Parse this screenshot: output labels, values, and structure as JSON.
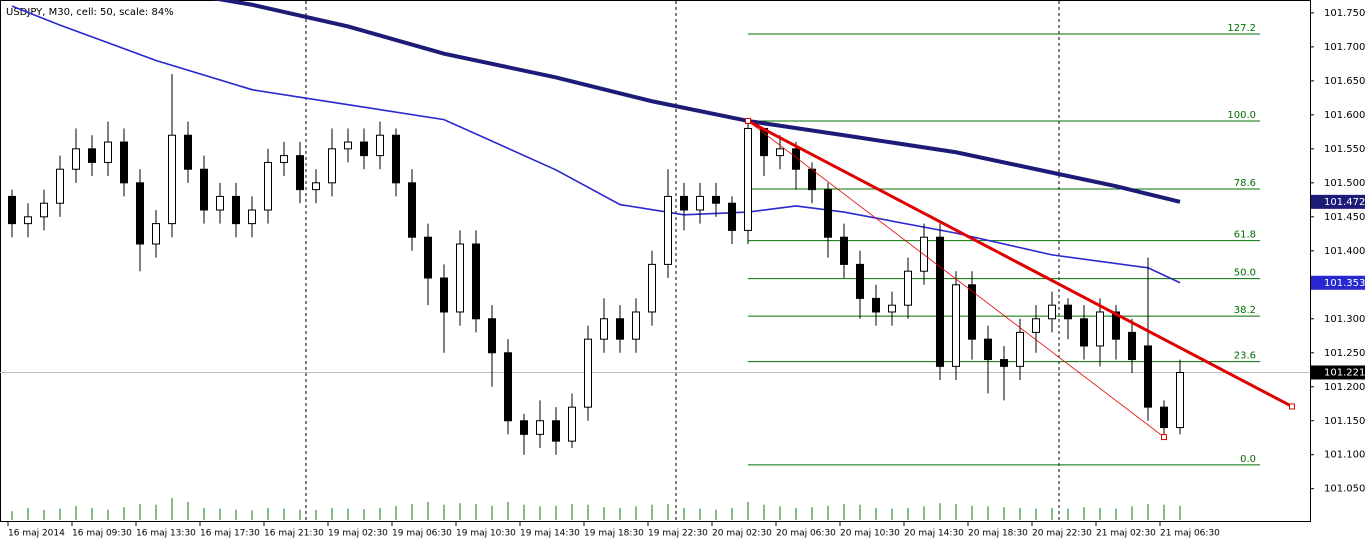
{
  "chart_data": {
    "type": "candlestick",
    "title": "USDJPY, M30, cell: 50, scale: 84%",
    "categories": [
      "16 maj 2014",
      null,
      null,
      null,
      "16 maj 09:30",
      null,
      null,
      null,
      "16 maj 13:30",
      null,
      null,
      null,
      "16 maj 17:30",
      null,
      null,
      null,
      "16 maj 21:30",
      null,
      null,
      null,
      "19 maj 02:30",
      null,
      null,
      null,
      "19 maj 06:30",
      null,
      null,
      null,
      "19 maj 10:30",
      null,
      null,
      null,
      "19 maj 14:30",
      null,
      null,
      null,
      "19 maj 18:30",
      null,
      null,
      null,
      "19 maj 22:30",
      null,
      null,
      null,
      "20 maj 02:30",
      null,
      null,
      null,
      "20 maj 06:30",
      null,
      null,
      null,
      "20 maj 10:30",
      null,
      null,
      null,
      "20 maj 14:30",
      null,
      null,
      null,
      "20 maj 18:30",
      null,
      null,
      null,
      "20 maj 22:30",
      null,
      null,
      null,
      "21 maj 02:30",
      null,
      null,
      null,
      "21 maj 06:30",
      null
    ],
    "open": [
      101.48,
      101.44,
      101.45,
      101.47,
      101.52,
      101.55,
      101.53,
      101.56,
      101.5,
      101.41,
      101.44,
      101.57,
      101.52,
      101.46,
      101.48,
      101.44,
      101.46,
      101.53,
      101.54,
      101.49,
      101.5,
      101.55,
      101.56,
      101.54,
      101.57,
      101.5,
      101.42,
      101.36,
      101.31,
      101.41,
      101.3,
      101.25,
      101.15,
      101.13,
      101.15,
      101.12,
      101.17,
      101.27,
      101.3,
      101.27,
      101.31,
      101.38,
      101.48,
      101.46,
      101.48,
      101.47,
      101.43,
      101.58,
      101.54,
      101.55,
      101.52,
      101.49,
      101.42,
      101.38,
      101.33,
      101.31,
      101.32,
      101.37,
      101.42,
      101.23,
      101.35,
      101.27,
      101.24,
      101.23,
      101.28,
      101.3,
      101.32,
      101.3,
      101.26,
      101.31,
      101.28,
      101.26,
      101.17,
      101.14
    ],
    "high": [
      101.49,
      101.47,
      101.49,
      101.54,
      101.58,
      101.57,
      101.59,
      101.58,
      101.52,
      101.46,
      101.66,
      101.59,
      101.54,
      101.5,
      101.5,
      101.48,
      101.55,
      101.56,
      101.56,
      101.52,
      101.58,
      101.58,
      101.58,
      101.59,
      101.58,
      101.52,
      101.44,
      101.38,
      101.43,
      101.43,
      101.32,
      101.27,
      101.16,
      101.18,
      101.17,
      101.19,
      101.29,
      101.33,
      101.32,
      101.33,
      101.4,
      101.52,
      101.5,
      101.5,
      101.5,
      101.48,
      101.592,
      101.58,
      101.57,
      101.56,
      101.53,
      101.5,
      101.44,
      101.4,
      101.35,
      101.34,
      101.39,
      101.44,
      101.44,
      101.37,
      101.37,
      101.29,
      101.26,
      101.3,
      101.32,
      101.34,
      101.33,
      101.32,
      101.33,
      101.32,
      101.3,
      101.39,
      101.18,
      101.24
    ],
    "low": [
      101.42,
      101.42,
      101.43,
      101.45,
      101.5,
      101.51,
      101.51,
      101.48,
      101.37,
      101.39,
      101.42,
      101.5,
      101.44,
      101.44,
      101.42,
      101.42,
      101.44,
      101.51,
      101.47,
      101.47,
      101.48,
      101.53,
      101.52,
      101.52,
      101.48,
      101.4,
      101.32,
      101.25,
      101.29,
      101.28,
      101.2,
      101.13,
      101.1,
      101.11,
      101.1,
      101.11,
      101.15,
      101.25,
      101.25,
      101.25,
      101.29,
      101.36,
      101.43,
      101.44,
      101.45,
      101.41,
      101.41,
      101.51,
      101.52,
      101.49,
      101.47,
      101.39,
      101.36,
      101.3,
      101.29,
      101.29,
      101.3,
      101.35,
      101.21,
      101.21,
      101.24,
      101.19,
      101.18,
      101.21,
      101.25,
      101.28,
      101.27,
      101.24,
      101.23,
      101.24,
      101.22,
      101.15,
      101.126,
      101.13
    ],
    "close": [
      101.44,
      101.45,
      101.47,
      101.52,
      101.55,
      101.53,
      101.56,
      101.5,
      101.41,
      101.44,
      101.57,
      101.52,
      101.46,
      101.48,
      101.44,
      101.46,
      101.53,
      101.54,
      101.49,
      101.5,
      101.55,
      101.56,
      101.54,
      101.57,
      101.5,
      101.42,
      101.36,
      101.31,
      101.41,
      101.3,
      101.25,
      101.15,
      101.13,
      101.15,
      101.12,
      101.17,
      101.27,
      101.3,
      101.27,
      101.31,
      101.38,
      101.48,
      101.46,
      101.48,
      101.47,
      101.43,
      101.58,
      101.54,
      101.55,
      101.52,
      101.49,
      101.42,
      101.38,
      101.33,
      101.31,
      101.32,
      101.37,
      101.42,
      101.23,
      101.35,
      101.27,
      101.24,
      101.23,
      101.28,
      101.3,
      101.32,
      101.3,
      101.26,
      101.31,
      101.27,
      101.24,
      101.17,
      101.14,
      101.221
    ],
    "volume": [
      22,
      30,
      25,
      28,
      35,
      30,
      26,
      32,
      40,
      38,
      55,
      45,
      30,
      28,
      26,
      24,
      30,
      28,
      26,
      25,
      30,
      28,
      27,
      30,
      35,
      40,
      45,
      38,
      42,
      40,
      36,
      45,
      38,
      34,
      36,
      40,
      38,
      32,
      30,
      34,
      38,
      40,
      30,
      28,
      26,
      30,
      45,
      38,
      34,
      30,
      32,
      36,
      40,
      38,
      30,
      28,
      30,
      34,
      42,
      40,
      36,
      34,
      32,
      30,
      28,
      30,
      28,
      32,
      30,
      28,
      34,
      40,
      38,
      36
    ],
    "moving_averages": [
      {
        "color": "#1c1c78",
        "width": 4,
        "x": [
          0,
          8,
          15,
          21,
          27,
          34,
          40,
          46,
          52,
          59,
          65,
          69,
          73
        ],
        "values": [
          101.83,
          101.79,
          101.762,
          101.73,
          101.69,
          101.655,
          101.62,
          101.591,
          101.57,
          101.545,
          101.515,
          101.495,
          101.472
        ]
      },
      {
        "color": "#2828d0",
        "width": 1.6,
        "x": [
          0,
          3,
          9,
          15,
          21,
          27,
          34,
          38,
          42,
          46,
          49,
          52,
          59,
          65,
          71,
          73
        ],
        "values": [
          101.76,
          101.732,
          101.68,
          101.637,
          101.615,
          101.593,
          101.519,
          101.468,
          101.453,
          101.457,
          101.466,
          101.457,
          101.426,
          101.394,
          101.375,
          101.353
        ]
      }
    ],
    "trendlines": [
      {
        "color": "#e00000",
        "width": 3,
        "x": [
          46,
          80
        ],
        "values": [
          101.591,
          101.171
        ]
      },
      {
        "color": "#e00000",
        "width": 0.8,
        "x": [
          46,
          72
        ],
        "values": [
          101.591,
          101.126
        ]
      }
    ],
    "fibonacci": {
      "color": "#007000",
      "x": [
        46,
        78
      ],
      "levels": [
        {
          "level": 127.2,
          "price": 101.719
        },
        {
          "level": {
            "value": 100,
            "label": "100.0"
          },
          "price": 101.591
        },
        {
          "level": 78.6,
          "price": 101.491
        },
        {
          "level": 61.8,
          "price": 101.415
        },
        {
          "level": {
            "value": 50,
            "label": "50.0"
          },
          "price": 101.359
        },
        {
          "level": 38.2,
          "price": 101.304
        },
        {
          "level": 23.6,
          "price": 101.237
        },
        {
          "level": {
            "value": 0,
            "label": "0.0"
          },
          "price": 101.085
        }
      ]
    },
    "ylim": [
      101.004,
      101.766
    ],
    "yticks": [
      {
        "value": 101.75,
        "label": "101.750"
      },
      {
        "value": 101.7,
        "label": "101.700"
      },
      {
        "value": 101.65,
        "label": "101.650"
      },
      {
        "value": 101.6,
        "label": "101.600"
      },
      {
        "value": 101.55,
        "label": "101.550"
      },
      {
        "value": 101.5,
        "label": "101.500"
      },
      {
        "value": 101.45,
        "label": "101.450"
      },
      {
        "value": 101.4,
        "label": "101.400"
      },
      {
        "value": 101.3,
        "label": "101.300"
      },
      {
        "value": 101.25,
        "label": "101.250"
      },
      {
        "value": 101.2,
        "label": "101.200"
      },
      {
        "value": 101.15,
        "label": "101.150"
      },
      {
        "value": 101.1,
        "label": "101.100"
      },
      {
        "value": 101.05,
        "label": "101.050"
      }
    ]
  }
}
